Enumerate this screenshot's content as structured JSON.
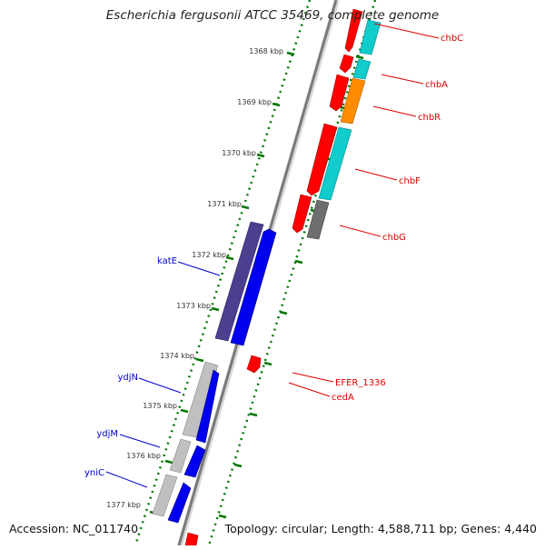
{
  "title": "Escherichia fergusonii ATCC 35469, complete genome",
  "footer": {
    "accession": "Accession: NC_011740",
    "summary": "Topology: circular; Length: 4,588,711 bp; Genes: 4,440"
  },
  "ticks": [
    "1368 kbp",
    "1369 kbp",
    "1370 kbp",
    "1371 kbp",
    "1372 kbp",
    "1373 kbp",
    "1374 kbp",
    "1375 kbp",
    "1376 kbp",
    "1377 kbp"
  ],
  "right_labels": [
    "chbC",
    "chbA",
    "chbR",
    "chbF",
    "chbG",
    "EFER_1336",
    "cedA"
  ],
  "left_labels": [
    "katE",
    "ydjN",
    "ydjM",
    "yniC"
  ],
  "colors": {
    "cds_forward": "#0000ee",
    "cds_reverse": "#ff0000",
    "gene_dark": "#4b3f90",
    "gene_cyan": "#11cccc",
    "gene_orange": "#ff8c00",
    "gene_gray": "#6e6e6e",
    "gene_light": "#c0c0c0",
    "tick_green": "#007700",
    "label_red": "#dd0000",
    "label_blue": "#0000cc"
  }
}
